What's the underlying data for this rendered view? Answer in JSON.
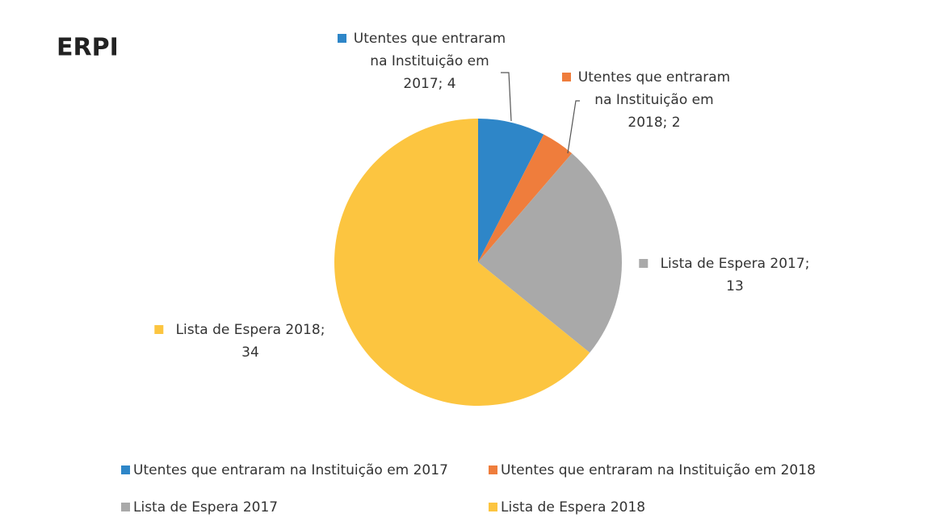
{
  "chart_data": {
    "type": "pie",
    "title": "ERPI",
    "categories": [
      "Utentes que entraram na Instituição em 2017",
      "Utentes que entraram na Instituição em 2018",
      "Lista de Espera 2017",
      "Lista de Espera 2018"
    ],
    "values": [
      4,
      2,
      13,
      34
    ],
    "value_labels": [
      "Utentes que entraram na Instituição em 2017; 4",
      "Utentes que entraram na Instituição em 2018; 2",
      "Lista de Espera 2017; 13",
      "Lista de Espera 2018; 34"
    ],
    "colors": [
      "#2e86c8",
      "#ef7d3c",
      "#a9a9a9",
      "#fcc540"
    ],
    "legend": "bottom"
  }
}
